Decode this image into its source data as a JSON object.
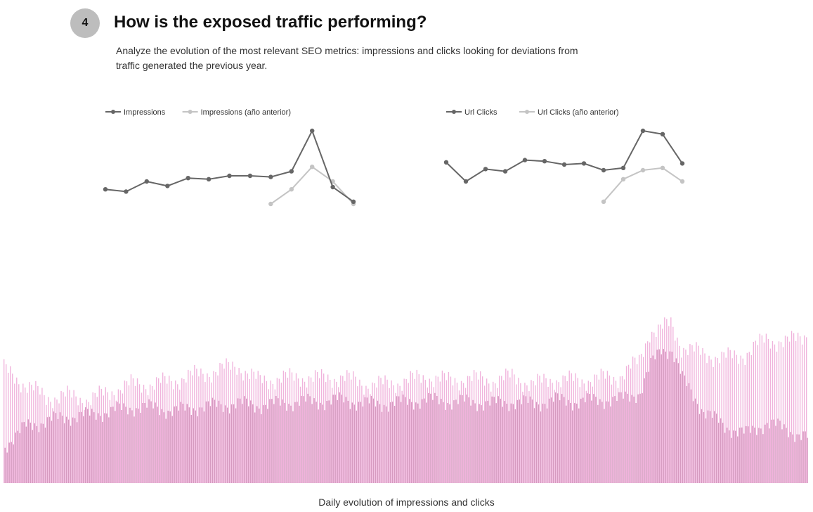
{
  "section": {
    "number": "4",
    "title": "How is the exposed traffic performing?",
    "description": "Analyze the evolution of the most relevant SEO metrics: impressions and clicks looking for deviations from traffic generated the previous year."
  },
  "colors": {
    "current": "#666666",
    "previous": "#c4c4c4",
    "bar_light": "#f0b3dc",
    "bar_dark": "#d69ac0"
  },
  "caption": "Daily evolution of impressions and clicks",
  "chart_data": [
    {
      "type": "line",
      "title": "",
      "xlabel": "",
      "ylabel": "",
      "legend": "top-left",
      "grid": false,
      "ylim": [
        0,
        100
      ],
      "series": [
        {
          "name": "Impressions",
          "values": [
            38,
            36,
            45,
            41,
            48,
            47,
            50,
            50,
            49,
            54,
            90,
            40,
            27
          ]
        },
        {
          "name": "Impressions (año anterior)",
          "values": [
            null,
            null,
            null,
            null,
            null,
            null,
            null,
            null,
            25,
            38,
            58,
            45,
            25
          ]
        }
      ]
    },
    {
      "type": "line",
      "title": "",
      "xlabel": "",
      "ylabel": "",
      "legend": "top-left",
      "grid": false,
      "ylim": [
        0,
        100
      ],
      "series": [
        {
          "name": "Url Clicks",
          "values": [
            62,
            45,
            56,
            54,
            64,
            63,
            60,
            61,
            55,
            57,
            90,
            87,
            61
          ]
        },
        {
          "name": "Url Clicks (año anterior)",
          "values": [
            null,
            null,
            null,
            null,
            null,
            null,
            null,
            null,
            27,
            47,
            55,
            57,
            45
          ]
        }
      ]
    },
    {
      "type": "bar",
      "title": "",
      "xlabel": "",
      "ylabel": "",
      "grid": false,
      "ylim": [
        0,
        100
      ],
      "n_days": 380,
      "series": [
        {
          "name": "",
          "anchors_x": [
            0,
            10,
            20,
            30,
            40,
            50,
            60,
            70,
            80,
            90,
            100,
            110,
            120,
            130,
            140,
            150,
            160,
            170,
            180,
            190,
            200,
            210,
            220,
            230,
            240,
            250,
            260,
            270,
            280,
            290,
            300,
            305,
            310,
            315,
            320,
            330,
            340,
            350,
            360,
            370,
            379
          ],
          "anchors_y": [
            60,
            52,
            45,
            46,
            44,
            48,
            52,
            52,
            54,
            57,
            59,
            62,
            54,
            55,
            56,
            55,
            56,
            52,
            52,
            54,
            56,
            54,
            55,
            54,
            56,
            52,
            55,
            54,
            55,
            56,
            64,
            80,
            81,
            84,
            72,
            68,
            66,
            68,
            76,
            74,
            79
          ]
        },
        {
          "name": "",
          "anchors_x": [
            0,
            10,
            20,
            30,
            40,
            50,
            60,
            70,
            80,
            90,
            100,
            110,
            120,
            130,
            140,
            150,
            160,
            170,
            180,
            190,
            200,
            210,
            220,
            230,
            240,
            250,
            260,
            270,
            280,
            290,
            300,
            305,
            310,
            315,
            320,
            330,
            340,
            350,
            360,
            370,
            379
          ],
          "anchors_y": [
            20,
            30,
            33,
            35,
            36,
            38,
            40,
            40,
            38,
            40,
            41,
            42,
            41,
            42,
            43,
            43,
            44,
            42,
            42,
            43,
            44,
            43,
            43,
            42,
            43,
            42,
            44,
            43,
            44,
            44,
            48,
            62,
            71,
            70,
            55,
            38,
            30,
            26,
            32,
            28,
            24
          ]
        }
      ]
    }
  ]
}
